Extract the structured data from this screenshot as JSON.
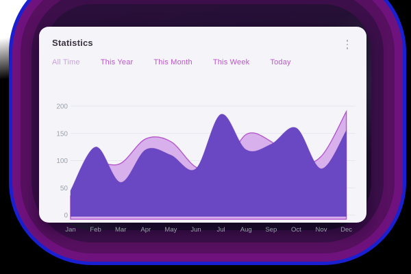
{
  "card": {
    "title": "Statistics",
    "menu_icon": "kebab-vertical-icon",
    "tabs": [
      {
        "label": "All Time",
        "active": true
      },
      {
        "label": "This Year",
        "active": false
      },
      {
        "label": "This Month",
        "active": false
      },
      {
        "label": "This Week",
        "active": false
      },
      {
        "label": "Today",
        "active": false
      }
    ]
  },
  "colors": {
    "tab_active": "#c9a2df",
    "tab_inactive": "#bc53cd",
    "series_lavender_fill": "#d8b0eb",
    "series_lavender_stroke": "#b457cc",
    "series_purple_fill": "#6a48c4",
    "series_purple_stroke": "#5f35b4",
    "grid": "#e5e7ef",
    "axis_text": "#9aa0ab",
    "card_bg": "#f5f4f9"
  },
  "chart_data": {
    "type": "area",
    "title": "",
    "xlabel": "",
    "ylabel": "",
    "categories": [
      "Jan",
      "Feb",
      "Mar",
      "Apr",
      "May",
      "Jun",
      "Jul",
      "Aug",
      "Sep",
      "Oct",
      "Nov",
      "Dec"
    ],
    "series": [
      {
        "name": "lavender-series",
        "values": [
          35,
          90,
          95,
          140,
          135,
          88,
          80,
          148,
          135,
          95,
          108,
          190
        ]
      },
      {
        "name": "purple-series",
        "values": [
          45,
          125,
          60,
          120,
          110,
          85,
          185,
          120,
          130,
          160,
          85,
          155
        ]
      }
    ],
    "ylim": [
      0,
      200
    ],
    "yticks": [
      0,
      50,
      100,
      150,
      200
    ],
    "grid": true,
    "legend": "none",
    "curve": "smooth"
  }
}
